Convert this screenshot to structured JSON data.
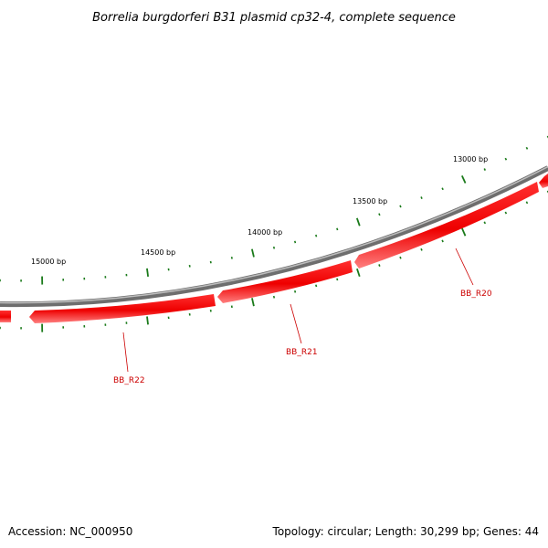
{
  "title": "Borrelia burgdorferi B31 plasmid cp32-4, complete sequence",
  "ticks": [
    {
      "bp": 13000,
      "label": "13000 bp"
    },
    {
      "bp": 13500,
      "label": "13500 bp"
    },
    {
      "bp": 14000,
      "label": "14000 bp"
    },
    {
      "bp": 14500,
      "label": "14500 bp"
    },
    {
      "bp": 15000,
      "label": "15000 bp"
    }
  ],
  "genes": [
    {
      "name": "BB_R20",
      "strand": "-"
    },
    {
      "name": "BB_R21",
      "strand": "-"
    },
    {
      "name": "BB_R22",
      "strand": "-"
    }
  ],
  "colors": {
    "gene": "#ee0000",
    "backbone": "#888888",
    "tick": "#1a7a1a",
    "gene_label": "#cc0000"
  },
  "footer": {
    "accession": "Accession: NC_000950",
    "topology": "Topology: circular; Length: 30,299 bp; Genes: 44"
  }
}
